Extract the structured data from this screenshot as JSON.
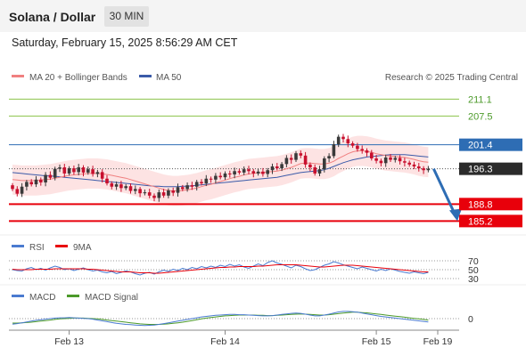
{
  "header": {
    "title": "Solana / Dollar",
    "timeframe": "30 MIN"
  },
  "datetime": "Saturday, February 15, 2025 8:56:29 AM CET",
  "legend": {
    "ma20": "MA 20 + Bollinger Bands",
    "ma50": "MA 50",
    "credit": "Research © 2025 Trading Central"
  },
  "rsi_legend": {
    "rsi": "RSI",
    "ma": "9MA"
  },
  "macd_legend": {
    "macd": "MACD",
    "signal": "MACD Signal"
  },
  "colors": {
    "up": "#3a3a3a",
    "down": "#c8102e",
    "ma20": "#f08080",
    "band": "#fde3e3",
    "ma50": "#3b5ba9",
    "arrow": "#2e6db4",
    "resistance": "#8bc34a",
    "blue_level": "#2e6db4",
    "support": "#e8000b"
  },
  "chart_data": [
    {
      "type": "candlestick",
      "title": "Solana / Dollar",
      "ylim": [
        183,
        214
      ],
      "x_ticks": [
        "Feb 13",
        "Feb 14",
        "Feb 15",
        "Feb 19"
      ],
      "levels": [
        {
          "value": 211.1,
          "label": "211.1",
          "kind": "resistance"
        },
        {
          "value": 207.5,
          "label": "207.5",
          "kind": "resistance"
        },
        {
          "value": 201.4,
          "label": "201.4",
          "kind": "pivot"
        },
        {
          "value": 196.3,
          "label": "196.3",
          "kind": "last"
        },
        {
          "value": 188.8,
          "label": "188.8",
          "kind": "support"
        },
        {
          "value": 185.2,
          "label": "185.2",
          "kind": "support"
        }
      ],
      "close": [
        192.0,
        191.0,
        192.5,
        193.5,
        193.0,
        194.0,
        193.4,
        195.0,
        194.4,
        196.3,
        196.6,
        195.3,
        196.4,
        195.6,
        196.6,
        195.5,
        196.2,
        195.2,
        195.6,
        194.2,
        193.2,
        192.5,
        193.0,
        192.2,
        192.6,
        191.6,
        192.0,
        191.1,
        191.3,
        190.6,
        190.1,
        191.3,
        190.6,
        191.7,
        191.2,
        192.4,
        192.0,
        192.8,
        192.5,
        193.5,
        193.2,
        194.2,
        194.0,
        194.8,
        194.5,
        195.3,
        195.1,
        195.8,
        195.5,
        196.2,
        195.8,
        195.3,
        195.7,
        195.2,
        196.0,
        196.8,
        196.4,
        197.3,
        198.6,
        198.2,
        199.6,
        199.1,
        197.2,
        196.6,
        195.3,
        196.2,
        198.5,
        199.0,
        201.5,
        203.1,
        202.6,
        201.7,
        201.2,
        200.5,
        200.2,
        199.7,
        198.5,
        198.0,
        197.5,
        198.7,
        198.2,
        198.6,
        197.9,
        197.6,
        197.2,
        196.8,
        196.4,
        196.0,
        196.3
      ],
      "ma20": [
        194.0,
        193.9,
        193.8,
        193.8,
        193.8,
        193.8,
        193.9,
        194.0,
        194.1,
        194.3,
        194.5,
        194.7,
        194.9,
        195.0,
        195.1,
        195.2,
        195.3,
        195.3,
        195.3,
        195.2,
        195.1,
        194.9,
        194.7,
        194.5,
        194.3,
        194.0,
        193.7,
        193.4,
        193.1,
        192.8,
        192.5,
        192.2,
        191.9,
        191.7,
        191.6,
        191.6,
        191.7,
        191.8,
        192.0,
        192.2,
        192.5,
        192.8,
        193.0,
        193.3,
        193.6,
        193.9,
        194.2,
        194.5,
        194.7,
        195.0,
        195.2,
        195.3,
        195.4,
        195.5,
        195.6,
        195.7,
        195.8,
        196.0,
        196.3,
        196.6,
        197.0,
        197.4,
        197.5,
        197.5,
        197.4,
        197.3,
        197.3,
        197.5,
        197.9,
        198.5,
        199.0,
        199.5,
        199.9,
        200.1,
        200.1,
        200.0,
        199.8,
        199.5,
        199.3,
        199.1,
        199.0,
        198.9,
        198.8,
        198.7,
        198.5,
        198.3,
        198.0,
        197.8,
        197.7
      ],
      "ma50": [
        195.5,
        195.4,
        195.3,
        195.2,
        195.1,
        195.0,
        194.9,
        194.8,
        194.8,
        194.7,
        194.6,
        194.5,
        194.4,
        194.3,
        194.2,
        194.1,
        194.0,
        193.9,
        193.8,
        193.7,
        193.6,
        193.5,
        193.4,
        193.3,
        193.2,
        193.1,
        193.0,
        192.9,
        192.8,
        192.7,
        192.6,
        192.6,
        192.5,
        192.5,
        192.5,
        192.5,
        192.6,
        192.6,
        192.7,
        192.8,
        192.9,
        193.0,
        193.1,
        193.2,
        193.3,
        193.4,
        193.5,
        193.6,
        193.7,
        193.8,
        193.9,
        194.0,
        194.1,
        194.2,
        194.3,
        194.4,
        194.5,
        194.7,
        194.9,
        195.1,
        195.3,
        195.5,
        195.6,
        195.7,
        195.8,
        195.9,
        196.1,
        196.4,
        196.8,
        197.2,
        197.6,
        197.9,
        198.2,
        198.4,
        198.6,
        198.8,
        198.9,
        199.0,
        199.1,
        199.2,
        199.3,
        199.3,
        199.3,
        199.3,
        199.2,
        199.1,
        199.0,
        198.9,
        198.8
      ],
      "band_width": 3.2,
      "forecast_target": 185.2
    },
    {
      "type": "line",
      "title": "RSI",
      "ylim": [
        28,
        72
      ],
      "y_ticks": [
        70,
        50,
        30
      ],
      "series": [
        {
          "name": "RSI",
          "values": [
            50,
            48,
            47,
            52,
            55,
            50,
            53,
            49,
            54,
            58,
            55,
            50,
            52,
            48,
            51,
            54,
            50,
            47,
            49,
            45,
            43,
            46,
            41,
            44,
            47,
            45,
            41,
            38,
            42,
            44,
            40,
            45,
            49,
            46,
            51,
            48,
            53,
            50,
            55,
            52,
            57,
            54,
            58,
            55,
            60,
            57,
            62,
            58,
            61,
            56,
            53,
            58,
            63,
            59,
            66,
            70,
            65,
            62,
            58,
            54,
            60,
            57,
            52,
            48,
            50,
            55,
            60,
            63,
            68,
            65,
            61,
            58,
            55,
            52,
            56,
            53,
            50,
            47,
            51,
            48,
            52,
            49,
            46,
            44,
            42,
            45,
            43,
            41,
            44
          ]
        },
        {
          "name": "9MA",
          "values": [
            51,
            50,
            50,
            50,
            50,
            51,
            51,
            51,
            51,
            52,
            52,
            52,
            52,
            52,
            52,
            52,
            51,
            51,
            50,
            49,
            48,
            47,
            46,
            45,
            45,
            45,
            44,
            43,
            43,
            43,
            42,
            42,
            43,
            44,
            45,
            46,
            47,
            48,
            49,
            50,
            51,
            52,
            53,
            54,
            55,
            55,
            56,
            56,
            57,
            57,
            57,
            57,
            58,
            58,
            59,
            60,
            61,
            61,
            61,
            61,
            61,
            60,
            59,
            58,
            57,
            56,
            56,
            57,
            58,
            59,
            60,
            60,
            60,
            59,
            58,
            57,
            56,
            55,
            54,
            53,
            52,
            51,
            50,
            49,
            48,
            47,
            46,
            45,
            45
          ]
        }
      ]
    },
    {
      "type": "line",
      "title": "MACD",
      "ylim": [
        -4.5,
        4.5
      ],
      "y_ticks": [
        0
      ],
      "series": [
        {
          "name": "MACD",
          "values": [
            -2.0,
            -1.8,
            -1.5,
            -1.2,
            -0.9,
            -0.6,
            -0.4,
            -0.2,
            0.0,
            0.2,
            0.3,
            0.3,
            0.4,
            0.3,
            0.2,
            0.1,
            0.0,
            -0.2,
            -0.5,
            -0.8,
            -1.1,
            -1.4,
            -1.7,
            -1.9,
            -2.1,
            -2.2,
            -2.3,
            -2.4,
            -2.5,
            -2.4,
            -2.3,
            -2.1,
            -1.8,
            -1.5,
            -1.2,
            -0.9,
            -0.6,
            -0.3,
            0.0,
            0.3,
            0.6,
            0.8,
            1.0,
            1.2,
            1.3,
            1.4,
            1.5,
            1.5,
            1.4,
            1.4,
            1.3,
            1.2,
            1.1,
            1.0,
            1.0,
            1.1,
            1.3,
            1.5,
            1.7,
            1.9,
            2.0,
            1.9,
            1.6,
            1.3,
            1.0,
            1.0,
            1.3,
            1.6,
            2.0,
            2.4,
            2.6,
            2.6,
            2.5,
            2.3,
            2.0,
            1.7,
            1.4,
            1.1,
            0.8,
            0.6,
            0.4,
            0.2,
            0.0,
            -0.2,
            -0.4,
            -0.6,
            -0.8,
            -1.0,
            -1.2
          ]
        },
        {
          "name": "MACD Signal",
          "values": [
            -1.6,
            -1.6,
            -1.5,
            -1.4,
            -1.3,
            -1.1,
            -0.9,
            -0.7,
            -0.5,
            -0.3,
            -0.1,
            0.0,
            0.1,
            0.2,
            0.2,
            0.2,
            0.1,
            0.0,
            -0.1,
            -0.3,
            -0.5,
            -0.7,
            -0.9,
            -1.1,
            -1.3,
            -1.5,
            -1.7,
            -1.9,
            -2.0,
            -2.1,
            -2.1,
            -2.1,
            -2.0,
            -1.9,
            -1.7,
            -1.5,
            -1.3,
            -1.0,
            -0.7,
            -0.4,
            -0.1,
            0.2,
            0.4,
            0.6,
            0.8,
            1.0,
            1.1,
            1.2,
            1.3,
            1.3,
            1.3,
            1.3,
            1.2,
            1.2,
            1.1,
            1.1,
            1.2,
            1.3,
            1.4,
            1.5,
            1.6,
            1.7,
            1.6,
            1.5,
            1.4,
            1.3,
            1.3,
            1.4,
            1.6,
            1.8,
            2.0,
            2.2,
            2.3,
            2.3,
            2.2,
            2.1,
            1.9,
            1.7,
            1.5,
            1.3,
            1.1,
            0.9,
            0.7,
            0.5,
            0.3,
            0.1,
            -0.1,
            -0.3,
            -0.5
          ]
        }
      ]
    }
  ]
}
